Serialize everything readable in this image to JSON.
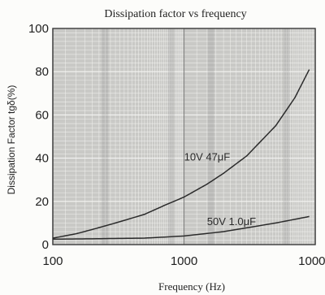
{
  "chart_data": {
    "type": "line",
    "title": "Dissipation factor vs frequency",
    "xlabel": "Frequency (Hz)",
    "ylabel": "Dissipation Factor  tgδ(%)",
    "xscale": "log",
    "xlim": [
      100,
      10000
    ],
    "ylim": [
      0,
      100
    ],
    "x_ticks": [
      100,
      1000,
      10000
    ],
    "x_tick_labels": [
      "100",
      "1000",
      "10000"
    ],
    "y_ticks": [
      0,
      20,
      40,
      60,
      80,
      100
    ],
    "y_tick_labels": [
      "0",
      "20",
      "40",
      "60",
      "80",
      "100"
    ],
    "grid": true,
    "series": [
      {
        "name": "10V 47μF",
        "x": [
          100,
          150,
          200,
          300,
          500,
          700,
          1000,
          1500,
          2000,
          3000,
          5000,
          7000,
          9000
        ],
        "y": [
          3,
          5,
          7,
          10,
          14,
          18,
          22,
          28,
          33,
          41,
          55,
          68,
          81
        ]
      },
      {
        "name": "50V 1.0μF",
        "x": [
          100,
          200,
          500,
          1000,
          2000,
          5000,
          9000
        ],
        "y": [
          2.5,
          2.7,
          3.0,
          4.0,
          6.0,
          10.0,
          13.0
        ]
      }
    ],
    "annotations": [
      {
        "text": "10V 47μF",
        "x": 1500,
        "y": 39
      },
      {
        "text": "50V 1.0μF",
        "x": 2300,
        "y": 9
      }
    ]
  },
  "colors": {
    "background": "#fcfcfa",
    "plot_background": "#c9c9c6",
    "grid": "#f4f4f2",
    "frame": "#3a3a3a",
    "curve": "#2b2b2b",
    "text": "#222222"
  }
}
